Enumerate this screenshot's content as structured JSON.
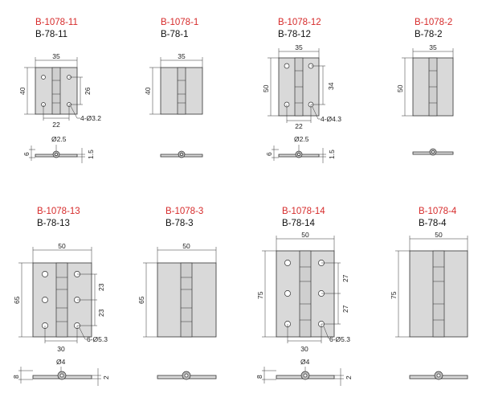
{
  "colors": {
    "code": "#d62a2a",
    "plate": "#d9d9d9",
    "outline": "#333333"
  },
  "hinges": [
    {
      "code": "B-1078-11",
      "model": "B-78-11",
      "width": "35",
      "height": "40",
      "hole_spacing_v": "26",
      "hole_spacing_h": "22",
      "holes": "4-Ø3.2",
      "pin": "Ø2.5",
      "thickness": "6",
      "leaf": "1.5"
    },
    {
      "code": "B-1078-1",
      "model": "B-78-1",
      "width": "35",
      "height": "40"
    },
    {
      "code": "B-1078-12",
      "model": "B-78-12",
      "width": "35",
      "height": "50",
      "hole_spacing_v": "34",
      "hole_spacing_h": "22",
      "holes": "4-Ø4.3",
      "pin": "Ø2.5",
      "thickness": "6",
      "leaf": "1.5"
    },
    {
      "code": "B-1078-2",
      "model": "B-78-2",
      "width": "35",
      "height": "50"
    },
    {
      "code": "B-1078-13",
      "model": "B-78-13",
      "width": "50",
      "height": "65",
      "hole_spacing_v1": "23",
      "hole_spacing_v2": "23",
      "hole_spacing_h": "30",
      "holes": "6-Ø5.3",
      "pin": "Ø4",
      "thickness": "8",
      "leaf": "2"
    },
    {
      "code": "B-1078-3",
      "model": "B-78-3",
      "width": "50",
      "height": "65"
    },
    {
      "code": "B-1078-14",
      "model": "B-78-14",
      "width": "50",
      "height": "75",
      "hole_spacing_v1": "27",
      "hole_spacing_v2": "27",
      "hole_spacing_h": "30",
      "holes": "6-Ø5.3",
      "pin": "Ø4",
      "thickness": "8",
      "leaf": "2"
    },
    {
      "code": "B-1078-4",
      "model": "B-78-4",
      "width": "50",
      "height": "75"
    }
  ]
}
